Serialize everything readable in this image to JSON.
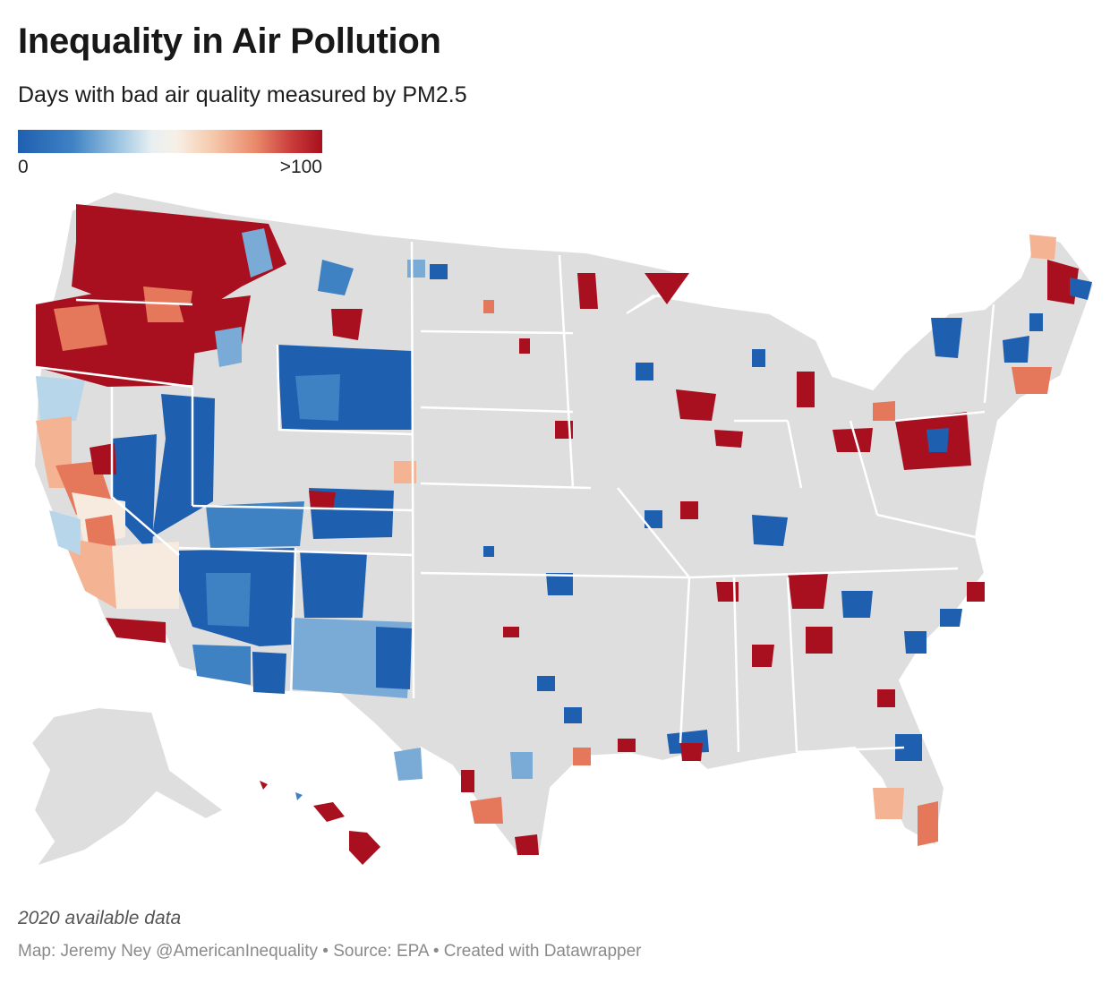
{
  "title": "Inequality in Air Pollution",
  "subtitle": "Days with bad air quality measured by PM2.5",
  "legend": {
    "min_label": "0",
    "max_label": ">100",
    "color_low": "#1f5fb0",
    "color_mid": "#f6f0e6",
    "color_high": "#a8101f"
  },
  "map": {
    "base_color": "#dedede",
    "border_color": "#ffffff",
    "palette": [
      "#1f5fb0",
      "#3f82c4",
      "#79abd6",
      "#b8d6ea",
      "#f7ebdf",
      "#f4b393",
      "#e5775a",
      "#c13636",
      "#a8101f"
    ]
  },
  "note": "2020 available data",
  "credit": "Map: Jeremy Ney @AmericanInequality • Source: EPA • Created with Datawrapper"
}
